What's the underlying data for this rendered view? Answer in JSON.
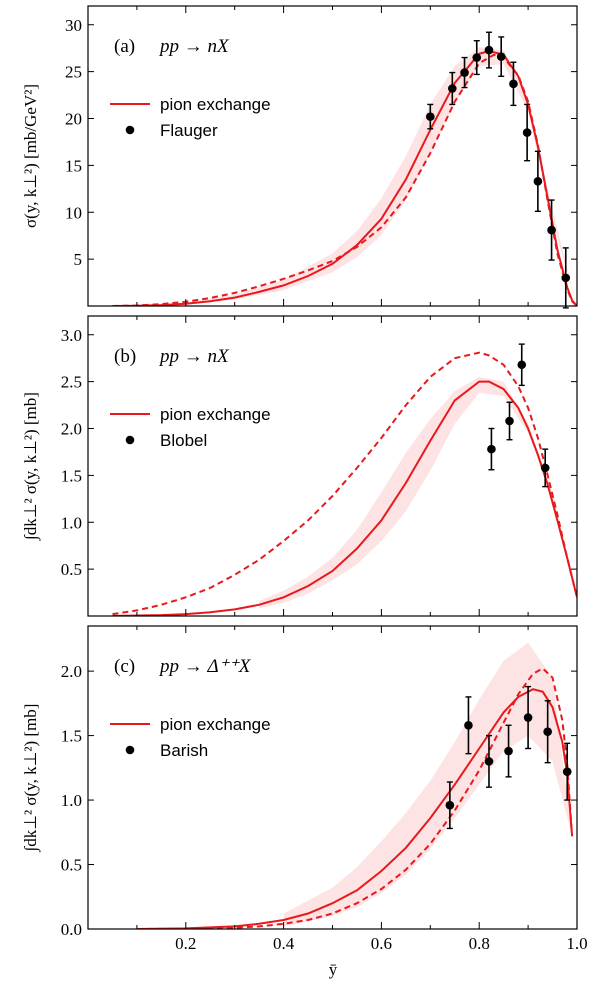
{
  "chart_data": [
    {
      "type": "line",
      "panel_label": "(a)",
      "reaction": "pp → nX",
      "ylabel": "σ(y, k⊥²)  [mb/GeV²]",
      "xlabel": "",
      "xlim": [
        0.0,
        1.0
      ],
      "ylim": [
        0,
        32
      ],
      "yticks": [
        5,
        10,
        15,
        20,
        25,
        30
      ],
      "xticks": [],
      "legend_placement": "top-left",
      "series": [
        {
          "name": "pion exchange",
          "style": "solid",
          "color": "#e8191d",
          "x": [
            0.05,
            0.1,
            0.15,
            0.2,
            0.25,
            0.3,
            0.35,
            0.4,
            0.45,
            0.5,
            0.55,
            0.6,
            0.65,
            0.7,
            0.75,
            0.8,
            0.82,
            0.85,
            0.88,
            0.9,
            0.92,
            0.94,
            0.96,
            0.98,
            0.99,
            1.0
          ],
          "y": [
            0,
            0.02,
            0.1,
            0.25,
            0.5,
            0.9,
            1.5,
            2.2,
            3.2,
            4.5,
            6.5,
            9.3,
            13.5,
            18.8,
            23.8,
            26.9,
            27.2,
            26.8,
            24.5,
            21.5,
            17.0,
            11.5,
            6.0,
            2.0,
            0.6,
            0
          ]
        },
        {
          "style": "dashed",
          "color": "#e8191d",
          "x": [
            0.05,
            0.1,
            0.15,
            0.2,
            0.25,
            0.3,
            0.35,
            0.4,
            0.45,
            0.5,
            0.55,
            0.6,
            0.65,
            0.7,
            0.75,
            0.8,
            0.83,
            0.85,
            0.88,
            0.9,
            0.92,
            0.94,
            0.96,
            0.98,
            0.99,
            1.0
          ],
          "y": [
            0,
            0.05,
            0.2,
            0.45,
            0.85,
            1.4,
            2.1,
            2.9,
            3.8,
            4.8,
            6.3,
            8.4,
            11.6,
            16.3,
            21.8,
            25.9,
            26.8,
            26.5,
            24.6,
            21.8,
            17.2,
            11.2,
            5.6,
            1.8,
            0.5,
            0
          ]
        }
      ],
      "band": {
        "color": "#fde3e3",
        "x": [
          0.2,
          0.3,
          0.4,
          0.5,
          0.55,
          0.6,
          0.65,
          0.7,
          0.75,
          0.8,
          0.85,
          0.9,
          0.95,
          1.0
        ],
        "lower": [
          0.2,
          0.7,
          1.7,
          3.6,
          5.2,
          7.6,
          11.3,
          16.2,
          21.6,
          25.6,
          25.8,
          20.8,
          9.0,
          0
        ],
        "upper": [
          0.35,
          1.2,
          2.8,
          5.6,
          8.0,
          11.5,
          16.0,
          21.5,
          25.6,
          27.6,
          27.3,
          22.0,
          10.2,
          0
        ]
      },
      "data_series": {
        "name": "Flauger",
        "x": [
          0.7,
          0.745,
          0.77,
          0.795,
          0.82,
          0.845,
          0.87,
          0.898,
          0.92,
          0.948,
          0.977
        ],
        "y": [
          20.2,
          23.2,
          24.9,
          26.5,
          27.3,
          26.6,
          23.7,
          18.5,
          13.3,
          8.1,
          3.0
        ],
        "err": [
          1.3,
          1.7,
          1.6,
          1.8,
          1.9,
          2.1,
          2.3,
          3.0,
          3.2,
          3.2,
          3.2
        ]
      }
    },
    {
      "type": "line",
      "panel_label": "(b)",
      "reaction": "pp → nX",
      "ylabel": "∫dk⊥² σ(y, k⊥²)  [mb]",
      "xlabel": "",
      "xlim": [
        0.0,
        1.0
      ],
      "ylim": [
        0,
        3.2
      ],
      "yticks": [
        0.5,
        1.0,
        1.5,
        2.0,
        2.5,
        3.0
      ],
      "ytick_labels": [
        "0.5",
        "1.0",
        "1.5",
        "2.0",
        "2.5",
        "3.0"
      ],
      "xticks": [],
      "legend_placement": "top-left",
      "series": [
        {
          "name": "pion exchange",
          "style": "solid",
          "color": "#e8191d",
          "x": [
            0.05,
            0.1,
            0.15,
            0.2,
            0.25,
            0.3,
            0.35,
            0.4,
            0.45,
            0.5,
            0.55,
            0.6,
            0.65,
            0.7,
            0.75,
            0.8,
            0.82,
            0.85,
            0.88,
            0.9,
            0.92,
            0.94,
            0.96,
            0.98,
            1.0
          ],
          "y": [
            0,
            0.005,
            0.01,
            0.02,
            0.04,
            0.07,
            0.12,
            0.2,
            0.32,
            0.48,
            0.72,
            1.02,
            1.42,
            1.87,
            2.3,
            2.5,
            2.5,
            2.42,
            2.22,
            2.0,
            1.72,
            1.4,
            1.02,
            0.62,
            0.2
          ]
        },
        {
          "style": "dashed",
          "color": "#e8191d",
          "x": [
            0.05,
            0.1,
            0.15,
            0.2,
            0.25,
            0.3,
            0.35,
            0.4,
            0.45,
            0.5,
            0.55,
            0.6,
            0.65,
            0.7,
            0.75,
            0.8,
            0.82,
            0.85,
            0.88,
            0.9,
            0.92,
            0.94,
            0.96,
            0.98,
            1.0
          ],
          "y": [
            0.02,
            0.06,
            0.12,
            0.2,
            0.3,
            0.44,
            0.6,
            0.8,
            1.02,
            1.28,
            1.58,
            1.9,
            2.25,
            2.55,
            2.75,
            2.81,
            2.78,
            2.68,
            2.45,
            2.22,
            1.9,
            1.5,
            1.08,
            0.62,
            0.2
          ]
        }
      ],
      "band": {
        "color": "#fde3e3",
        "x": [
          0.35,
          0.4,
          0.45,
          0.5,
          0.55,
          0.6,
          0.65,
          0.7,
          0.75,
          0.8,
          0.85,
          0.9,
          0.95,
          1.0
        ],
        "lower": [
          0.08,
          0.14,
          0.24,
          0.38,
          0.55,
          0.8,
          1.12,
          1.55,
          2.05,
          2.38,
          2.35,
          1.95,
          1.25,
          0.2
        ],
        "upper": [
          0.16,
          0.27,
          0.42,
          0.62,
          0.92,
          1.32,
          1.74,
          2.1,
          2.4,
          2.55,
          2.5,
          2.05,
          1.32,
          0.2
        ]
      },
      "data_series": {
        "name": "Blobel",
        "x": [
          0.825,
          0.862,
          0.887,
          0.935
        ],
        "y": [
          1.78,
          2.08,
          2.68,
          1.58
        ],
        "err": [
          0.22,
          0.2,
          0.22,
          0.2
        ]
      }
    },
    {
      "type": "line",
      "panel_label": "(c)",
      "reaction": "pp → Δ⁺⁺X",
      "ylabel": "∫dk⊥² σ(y, k⊥²)  [mb]",
      "xlabel": "ȳ",
      "xlim": [
        0.0,
        1.0
      ],
      "ylim": [
        0,
        2.35
      ],
      "yticks": [
        0.0,
        0.5,
        1.0,
        1.5,
        2.0
      ],
      "ytick_labels": [
        "0.0",
        "0.5",
        "1.0",
        "1.5",
        "2.0"
      ],
      "xticks": [
        0.2,
        0.4,
        0.6,
        0.8,
        1.0
      ],
      "xtick_labels": [
        "0.2",
        "0.4",
        "0.6",
        "0.8",
        "1.0"
      ],
      "legend_placement": "top-left",
      "series": [
        {
          "name": "pion exchange",
          "style": "solid",
          "color": "#e8191d",
          "x": [
            0.1,
            0.2,
            0.3,
            0.35,
            0.4,
            0.45,
            0.5,
            0.55,
            0.6,
            0.65,
            0.7,
            0.75,
            0.8,
            0.85,
            0.88,
            0.91,
            0.93,
            0.95,
            0.97,
            0.98,
            0.99
          ],
          "y": [
            0,
            0.005,
            0.02,
            0.04,
            0.07,
            0.12,
            0.2,
            0.3,
            0.45,
            0.63,
            0.86,
            1.12,
            1.4,
            1.68,
            1.8,
            1.86,
            1.84,
            1.72,
            1.45,
            1.2,
            0.72
          ]
        },
        {
          "style": "dashed",
          "color": "#e8191d",
          "x": [
            0.1,
            0.2,
            0.3,
            0.35,
            0.4,
            0.45,
            0.5,
            0.55,
            0.6,
            0.65,
            0.7,
            0.75,
            0.8,
            0.85,
            0.88,
            0.91,
            0.93,
            0.95,
            0.97,
            0.98,
            0.99
          ],
          "y": [
            0,
            0.002,
            0.01,
            0.02,
            0.04,
            0.07,
            0.12,
            0.2,
            0.31,
            0.46,
            0.66,
            0.92,
            1.23,
            1.6,
            1.82,
            1.98,
            2.02,
            1.95,
            1.62,
            1.28,
            0.72
          ]
        }
      ],
      "band": {
        "color": "#fde3e3",
        "x": [
          0.4,
          0.5,
          0.55,
          0.6,
          0.65,
          0.7,
          0.75,
          0.8,
          0.85,
          0.9,
          0.95,
          0.99
        ],
        "lower": [
          0.02,
          0.1,
          0.17,
          0.28,
          0.42,
          0.62,
          0.86,
          1.12,
          1.38,
          1.5,
          1.3,
          0.72
        ],
        "upper": [
          0.12,
          0.32,
          0.48,
          0.68,
          0.9,
          1.15,
          1.45,
          1.78,
          2.08,
          2.22,
          1.95,
          0.72
        ]
      },
      "data_series": {
        "name": "Barish",
        "x": [
          0.74,
          0.778,
          0.82,
          0.86,
          0.9,
          0.94,
          0.98
        ],
        "y": [
          0.96,
          1.58,
          1.3,
          1.38,
          1.64,
          1.53,
          1.22
        ],
        "err": [
          0.18,
          0.22,
          0.2,
          0.2,
          0.24,
          0.24,
          0.22
        ]
      }
    }
  ]
}
